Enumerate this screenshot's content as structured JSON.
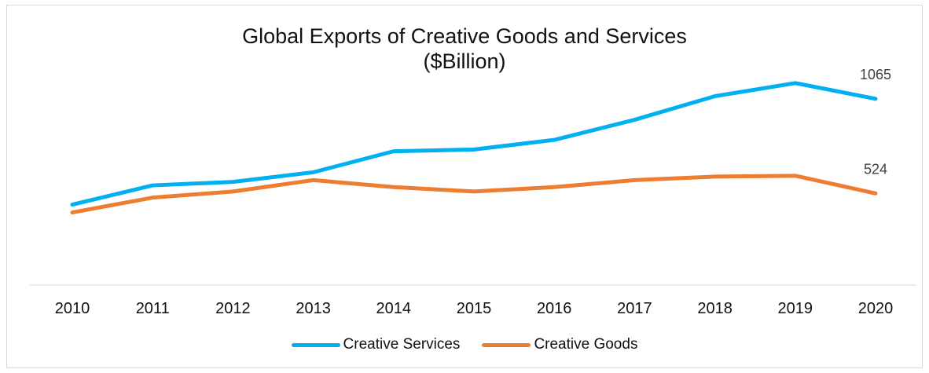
{
  "chart_data": {
    "type": "line",
    "title_line1": "Global Exports of Creative Goods and Services",
    "title_line2": "($Billion)",
    "categories": [
      "2010",
      "2011",
      "2012",
      "2013",
      "2014",
      "2015",
      "2016",
      "2017",
      "2018",
      "2019",
      "2020"
    ],
    "series": [
      {
        "name": "Creative Services",
        "color": "#00b0f0",
        "values": [
          460,
          570,
          590,
          645,
          765,
          775,
          830,
          945,
          1080,
          1155,
          1065
        ],
        "end_label": "1065"
      },
      {
        "name": "Creative Goods",
        "color": "#ed7d31",
        "values": [
          415,
          500,
          535,
          600,
          560,
          535,
          560,
          600,
          620,
          625,
          524
        ],
        "end_label": "524"
      }
    ],
    "ylim": [
      0,
      1630
    ],
    "grid": false,
    "legend_position": "bottom",
    "xlabel": "",
    "ylabel": ""
  }
}
